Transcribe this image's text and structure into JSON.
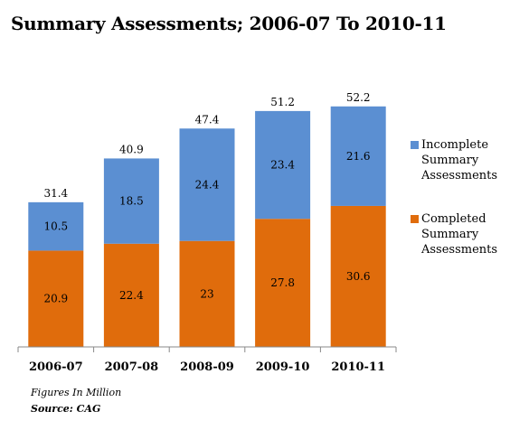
{
  "title": "Summary Assessments; 2006-07 To 2010-11",
  "notes": {
    "units": "Figures In Million",
    "source": "Source: CAG"
  },
  "colors": {
    "incomplete": "#5b8fd2",
    "completed": "#e06c0c"
  },
  "chart_data": {
    "type": "bar",
    "stacked": true,
    "categories": [
      "2006-07",
      "2007-08",
      "2008-09",
      "2009-10",
      "2010-11"
    ],
    "series": [
      {
        "name": "Completed Summary Assessments",
        "values": [
          20.9,
          22.4,
          23,
          27.8,
          30.6
        ]
      },
      {
        "name": "Incomplete Summary Assessments",
        "values": [
          10.5,
          18.5,
          24.4,
          23.4,
          21.6
        ]
      }
    ],
    "totals": [
      31.4,
      40.9,
      47.4,
      51.2,
      52.2
    ],
    "ylim": [
      0,
      60
    ],
    "grid": false,
    "legend": "right"
  },
  "legend": [
    {
      "label": "Incomplete Summary Assessments",
      "color_key": "incomplete"
    },
    {
      "label": "Completed Summary Assessments",
      "color_key": "completed"
    }
  ]
}
